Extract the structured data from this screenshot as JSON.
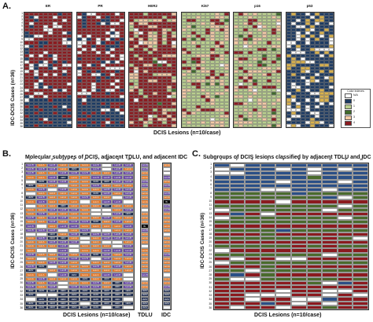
{
  "panels": {
    "A": {
      "letter": "A.",
      "y_axis": "IDC-DCIS Cases (n=36)",
      "x_axis": "DCIS Lesions (n=10/case)",
      "markers": [
        {
          "name": "ER",
          "palette": [
            "#8b1a1f",
            "#ffffff",
            "#1c3a63"
          ]
        },
        {
          "name": "PR",
          "palette": [
            "#8b1a1f",
            "#ffffff",
            "#1c3a63"
          ]
        },
        {
          "name": "HER2",
          "palette": [
            "#8b1a1f",
            "#f2c9a4",
            "#b9cf8d",
            "#ffffff",
            "#3f6b2a"
          ]
        },
        {
          "name": "Ki67",
          "palette": [
            "#b9cf8d",
            "#f2c9a4",
            "#8b1a1f",
            "#ffffff",
            "#3f6b2a"
          ]
        },
        {
          "name": "p16",
          "palette": [
            "#b9cf8d",
            "#f2c9a4",
            "#8b1a1f",
            "#ffffff",
            "#3f6b2a"
          ]
        },
        {
          "name": "p53",
          "palette": [
            "#1c3a63",
            "#ffffff",
            "#d9b14b"
          ]
        }
      ],
      "legend": {
        "title": "Color indexes",
        "items": [
          "N/A",
          "0",
          "1",
          "2",
          "3",
          "4"
        ],
        "colors": [
          "#ffffff",
          "#1c3a63",
          "#b9cf8d",
          "#3f6b2a",
          "#f2c9a4",
          "#8b1a1f"
        ]
      }
    },
    "B": {
      "letter": "B.",
      "title": "Molecular subtypes of DCIS, adjacent TDLU, and adjacent IDC",
      "y_axis": "IDC-DCIS Cases (n=36)",
      "x_axis": "DCIS Lesions (n=10/case)",
      "tdlu_label": "TDLU",
      "idc_label": "IDC",
      "cell_texts": [
        "Lum A",
        "Lum B",
        "HER2",
        "BL"
      ],
      "colors": {
        "lumA": "#e07a2e",
        "lumB": "#6a4ca3",
        "her2": "#1c2a4d",
        "bl": "#000000",
        "na": "#ffffff"
      }
    },
    "C": {
      "letter": "C.",
      "title": "Subgroups of DCIS lesions classified by adjacent TDLU and IDC",
      "y_axis": "IDC-DCIS Cases (n=36)",
      "x_axis": "DCIS Lesions (n=10/case)",
      "colors": {
        "blue": "#2b4f86",
        "green": "#4a6b2d",
        "red": "#8b1a1f",
        "na": "#ffffff"
      }
    }
  }
}
